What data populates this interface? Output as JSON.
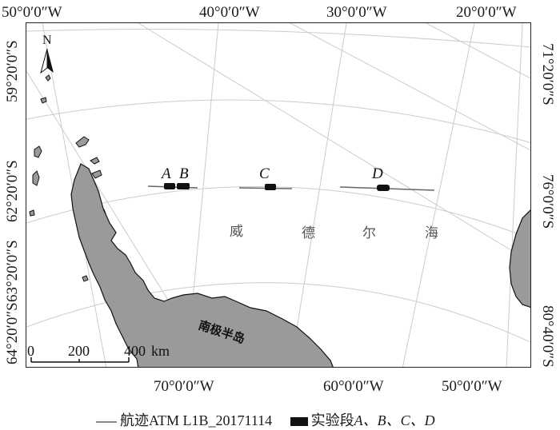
{
  "top_longitudes": [
    "50°0′0″W",
    "40°0′0″W",
    "30°0′0″W",
    "20°0′0″W"
  ],
  "bottom_longitudes": [
    "70°0′0″W",
    "60°0′0″W",
    "50°0′0″W"
  ],
  "left_latitudes": [
    "59°20′0″S",
    "62°20′0″S",
    "63°20′0″S",
    "64°20′0″S"
  ],
  "right_latitudes": [
    "71°20′0″S",
    "76°0′0″S",
    "80°40′0″S"
  ],
  "north_arrow": "N",
  "scale_bar": {
    "ticks": [
      "0",
      "200",
      "400"
    ],
    "unit": "km"
  },
  "segments": [
    "A",
    "B",
    "C",
    "D"
  ],
  "sea_name_chars": [
    "威",
    "德",
    "尔",
    "海"
  ],
  "peninsula_name": "南极半岛",
  "legend": {
    "track": "航迹ATM L1B_20171114",
    "segments_prefix": "实验段",
    "segments_list": "A、B、C、D"
  },
  "colors": {
    "land": "#9a9a9a",
    "grid": "#cccccc",
    "segment": "#111111",
    "track": "#666666"
  }
}
